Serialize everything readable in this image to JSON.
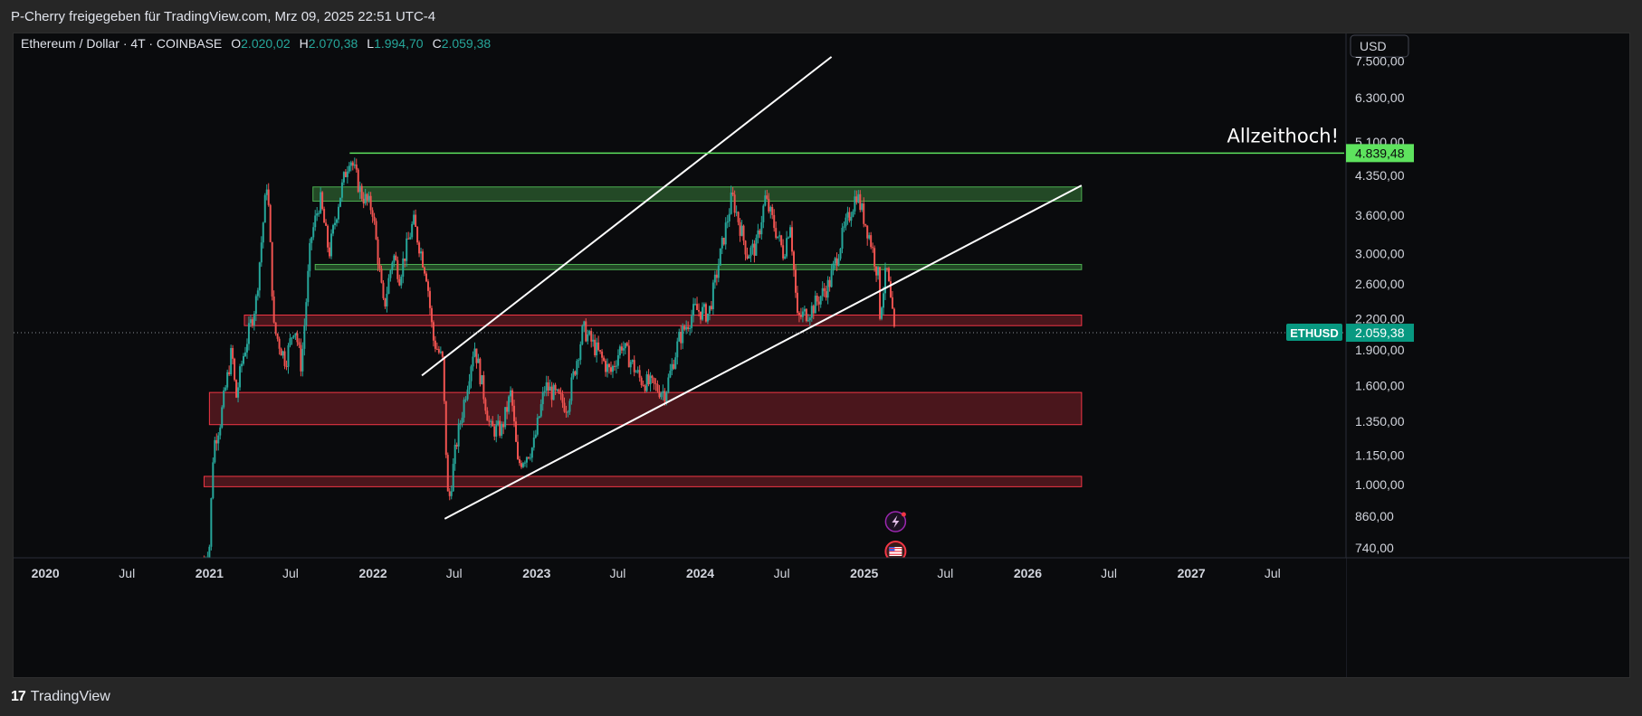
{
  "header": {
    "caption": "P-Cherry freigegeben für TradingView.com, Mrz 09, 2025 22:51 UTC-4"
  },
  "footer": {
    "brand": "TradingView",
    "logo_text": "17"
  },
  "chart_data": {
    "type": "candlestick",
    "symbol_title": "Ethereum / Dollar · 4T · COINBASE",
    "ohlc": {
      "o_label": "O",
      "o_value": "2.020,02",
      "h_label": "H",
      "h_value": "2.070,38",
      "l_label": "L",
      "l_value": "1.994,70",
      "c_label": "C",
      "c_value": "2.059,38"
    },
    "currency_button": "USD",
    "y_scale": "log",
    "y_ticks": [
      {
        "value": 7500,
        "label": "7.500,00"
      },
      {
        "value": 6300,
        "label": "6.300,00"
      },
      {
        "value": 5100,
        "label": "5.100,00"
      },
      {
        "value": 4350,
        "label": "4.350,00"
      },
      {
        "value": 3600,
        "label": "3.600,00"
      },
      {
        "value": 3000,
        "label": "3.000,00"
      },
      {
        "value": 2600,
        "label": "2.600,00"
      },
      {
        "value": 2200,
        "label": "2.200,00"
      },
      {
        "value": 1900,
        "label": "1.900,00"
      },
      {
        "value": 1600,
        "label": "1.600,00"
      },
      {
        "value": 1350,
        "label": "1.350,00"
      },
      {
        "value": 1150,
        "label": "1.150,00"
      },
      {
        "value": 1000,
        "label": "1.000,00"
      },
      {
        "value": 860,
        "label": "860,00"
      },
      {
        "value": 740,
        "label": "740,00"
      }
    ],
    "x_ticks": [
      {
        "date": "2020-01-01",
        "label": "2020"
      },
      {
        "date": "2020-07-01",
        "label": "Jul"
      },
      {
        "date": "2021-01-01",
        "label": "2021"
      },
      {
        "date": "2021-07-01",
        "label": "Jul"
      },
      {
        "date": "2022-01-01",
        "label": "2022"
      },
      {
        "date": "2022-07-01",
        "label": "Jul"
      },
      {
        "date": "2023-01-01",
        "label": "2023"
      },
      {
        "date": "2023-07-01",
        "label": "Jul"
      },
      {
        "date": "2024-01-01",
        "label": "2024"
      },
      {
        "date": "2024-07-01",
        "label": "Jul"
      },
      {
        "date": "2025-01-01",
        "label": "2025"
      },
      {
        "date": "2025-07-01",
        "label": "Jul"
      },
      {
        "date": "2026-01-01",
        "label": "2026"
      },
      {
        "date": "2026-07-01",
        "label": "Jul"
      },
      {
        "date": "2027-01-01",
        "label": "2027"
      },
      {
        "date": "2027-07-01",
        "label": "Jul"
      }
    ],
    "x_range": [
      "2019-10-22",
      "2027-12-08"
    ],
    "y_range": [
      706,
      8550
    ],
    "price_path": [
      [
        "2020-12-20",
        700
      ],
      [
        "2021-01-01",
        750
      ],
      [
        "2021-01-10",
        1200
      ],
      [
        "2021-01-25",
        1350
      ],
      [
        "2021-02-20",
        1900
      ],
      [
        "2021-03-01",
        1500
      ],
      [
        "2021-03-15",
        1800
      ],
      [
        "2021-04-15",
        2400
      ],
      [
        "2021-05-10",
        4300
      ],
      [
        "2021-05-25",
        2100
      ],
      [
        "2021-06-20",
        1800
      ],
      [
        "2021-07-10",
        2150
      ],
      [
        "2021-07-25",
        1750
      ],
      [
        "2021-08-15",
        3200
      ],
      [
        "2021-09-05",
        3900
      ],
      [
        "2021-09-25",
        3000
      ],
      [
        "2021-10-15",
        3800
      ],
      [
        "2021-11-10",
        4800
      ],
      [
        "2021-12-05",
        4000
      ],
      [
        "2021-12-31",
        3700
      ],
      [
        "2022-01-25",
        2300
      ],
      [
        "2022-02-15",
        3000
      ],
      [
        "2022-03-01",
        2700
      ],
      [
        "2022-04-01",
        3500
      ],
      [
        "2022-05-01",
        2700
      ],
      [
        "2022-05-15",
        2000
      ],
      [
        "2022-06-05",
        1800
      ],
      [
        "2022-06-18",
        900
      ],
      [
        "2022-07-05",
        1200
      ],
      [
        "2022-08-15",
        1950
      ],
      [
        "2022-09-20",
        1300
      ],
      [
        "2022-10-15",
        1300
      ],
      [
        "2022-11-05",
        1550
      ],
      [
        "2022-11-20",
        1100
      ],
      [
        "2022-12-25",
        1200
      ],
      [
        "2023-01-20",
        1600
      ],
      [
        "2023-03-10",
        1450
      ],
      [
        "2023-04-15",
        2100
      ],
      [
        "2023-06-15",
        1700
      ],
      [
        "2023-07-10",
        1950
      ],
      [
        "2023-08-20",
        1650
      ],
      [
        "2023-10-15",
        1550
      ],
      [
        "2023-11-15",
        2000
      ],
      [
        "2023-12-20",
        2300
      ],
      [
        "2024-01-20",
        2250
      ],
      [
        "2024-03-12",
        3950
      ],
      [
        "2024-04-15",
        3000
      ],
      [
        "2024-05-05",
        3100
      ],
      [
        "2024-05-25",
        3900
      ],
      [
        "2024-07-05",
        3000
      ],
      [
        "2024-07-20",
        3500
      ],
      [
        "2024-08-05",
        2200
      ],
      [
        "2024-09-05",
        2300
      ],
      [
        "2024-10-15",
        2600
      ],
      [
        "2024-11-15",
        3300
      ],
      [
        "2024-12-15",
        4000
      ],
      [
        "2025-01-15",
        3200
      ],
      [
        "2025-02-01",
        2700
      ],
      [
        "2025-02-03",
        2200
      ],
      [
        "2025-02-20",
        2800
      ],
      [
        "2025-03-09",
        2059.38
      ]
    ],
    "zones": [
      {
        "kind": "resistance",
        "x0": "2021-08-20",
        "x1": "2026-05-01",
        "y0": 3850,
        "y1": 4120,
        "color": "#4caf50"
      },
      {
        "kind": "resistance",
        "x0": "2021-08-25",
        "x1": "2026-05-01",
        "y0": 2780,
        "y1": 2850,
        "color": "#4caf50"
      },
      {
        "kind": "support",
        "x0": "2021-03-20",
        "x1": "2026-05-01",
        "y0": 2130,
        "y1": 2240,
        "color": "#f23645"
      },
      {
        "kind": "support",
        "x0": "2021-01-01",
        "x1": "2026-05-01",
        "y0": 1330,
        "y1": 1550,
        "color": "#f23645"
      },
      {
        "kind": "support",
        "x0": "2020-12-20",
        "x1": "2026-05-01",
        "y0": 990,
        "y1": 1040,
        "color": "#f23645"
      }
    ],
    "trendlines": [
      {
        "x0": "2022-04-20",
        "y0": 1680,
        "x1": "2024-10-20",
        "y1": 7650
      },
      {
        "x0": "2022-06-10",
        "y0": 850,
        "x1": "2026-05-01",
        "y1": 4150
      }
    ],
    "ath_line": {
      "x0": "2021-11-10",
      "value": 4839.48,
      "label": "4.839,48",
      "annotation": "Allzeithoch!"
    },
    "current": {
      "symbol": "ETHUSD",
      "value": 2059.38,
      "label": "2.059,38"
    },
    "colors": {
      "up": "#26a69a",
      "down": "#ef5350",
      "ath": "#5ee35e",
      "current": "#089981",
      "background": "#0a0b0d"
    },
    "event_icons": [
      "lightning-event-icon",
      "us-flag-event-icon"
    ]
  }
}
